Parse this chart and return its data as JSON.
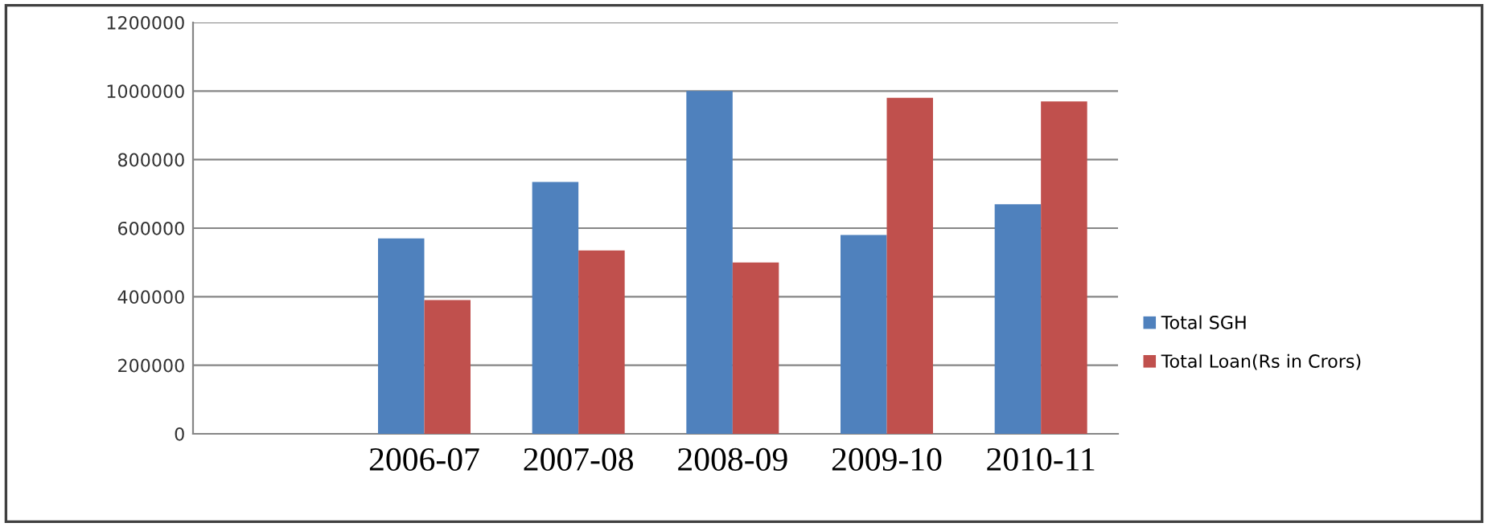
{
  "chart_data": {
    "type": "bar",
    "categories": [
      null,
      "2006-07",
      "2007-08",
      "2008-09",
      "2009-10",
      "2010-11"
    ],
    "series": [
      {
        "name": "Total SGH",
        "color": "#4f81bd",
        "values": [
          null,
          570000,
          735000,
          1000000,
          580000,
          670000
        ]
      },
      {
        "name": "Total Loan(Rs in Crors)",
        "color": "#c0504d",
        "values": [
          null,
          390000,
          535000,
          500000,
          980000,
          970000
        ]
      }
    ],
    "ylim": [
      0,
      1200000
    ],
    "yticks": [
      0,
      200000,
      400000,
      600000,
      800000,
      1000000,
      1200000
    ],
    "grid": "y",
    "legend": "right"
  }
}
